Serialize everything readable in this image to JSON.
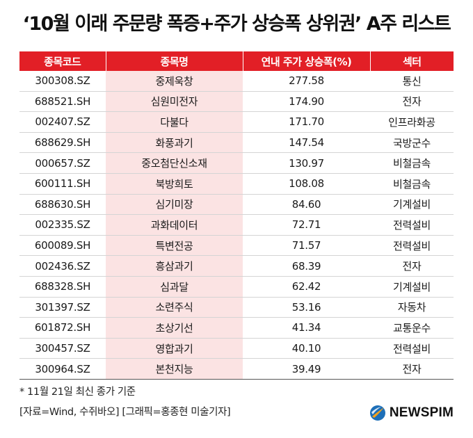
{
  "title": "‘10월 이래 주문량 폭증+주가 상승폭 상위권’ A주 리스트",
  "table": {
    "headers": [
      "종목코드",
      "종목명",
      "연내 주가 상승폭(%)",
      "섹터"
    ],
    "rows": [
      {
        "code": "300308.SZ",
        "name": "중제욱창",
        "change": "277.58",
        "sector": "통신"
      },
      {
        "code": "688521.SH",
        "name": "심원미전자",
        "change": "174.90",
        "sector": "전자"
      },
      {
        "code": "002407.SZ",
        "name": "다불다",
        "change": "171.70",
        "sector": "인프라화공"
      },
      {
        "code": "688629.SH",
        "name": "화풍과기",
        "change": "147.54",
        "sector": "국방군수"
      },
      {
        "code": "000657.SZ",
        "name": "중오첨단신소재",
        "change": "130.97",
        "sector": "비철금속"
      },
      {
        "code": "600111.SH",
        "name": "북방희토",
        "change": "108.08",
        "sector": "비철금속"
      },
      {
        "code": "688630.SH",
        "name": "심기미장",
        "change": "84.60",
        "sector": "기계설비"
      },
      {
        "code": "002335.SZ",
        "name": "과화데이터",
        "change": "72.71",
        "sector": "전력설비"
      },
      {
        "code": "600089.SH",
        "name": "특변전공",
        "change": "71.57",
        "sector": "전력설비"
      },
      {
        "code": "002436.SZ",
        "name": "흥삼과기",
        "change": "68.39",
        "sector": "전자"
      },
      {
        "code": "688328.SH",
        "name": "심과달",
        "change": "62.42",
        "sector": "기계설비"
      },
      {
        "code": "301397.SZ",
        "name": "소련주식",
        "change": "53.16",
        "sector": "자동차"
      },
      {
        "code": "601872.SH",
        "name": "초상기선",
        "change": "41.34",
        "sector": "교통운수"
      },
      {
        "code": "300457.SZ",
        "name": "영합과기",
        "change": "40.10",
        "sector": "전력설비"
      },
      {
        "code": "300964.SZ",
        "name": "본천지능",
        "change": "39.49",
        "sector": "전자"
      }
    ]
  },
  "notes": {
    "basis": "* 11월 21일 최신 종가 기준",
    "credit": "[자료=Wind, 수쥐바오] [그래픽=홍종현 미술기자]"
  },
  "logo": {
    "text": "NEWSPIM",
    "colors": {
      "circle": "#1e6fb8",
      "swoosh": "#f4a21d"
    }
  },
  "colors": {
    "header_bg": "#e21f26",
    "name_col_bg": "#fbe3e3"
  }
}
